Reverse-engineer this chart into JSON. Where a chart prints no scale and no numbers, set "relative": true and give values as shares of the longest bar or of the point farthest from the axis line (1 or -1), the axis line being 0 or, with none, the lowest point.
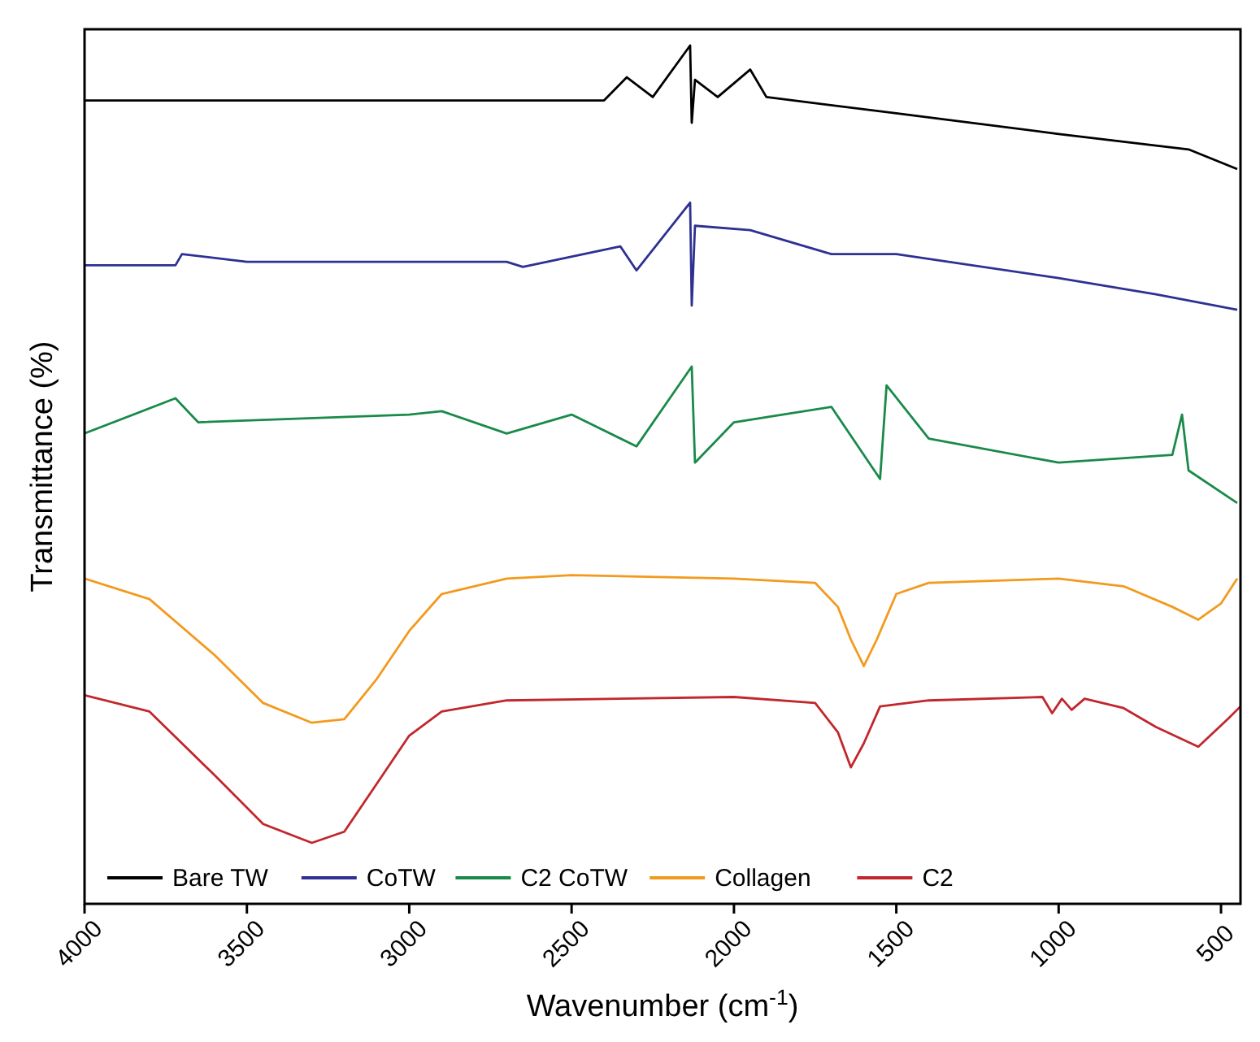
{
  "chart_data": {
    "type": "line",
    "relative": true,
    "xlabel": "Wavenumber (cm$^{-1}$)",
    "ylabel": "Transmittance (%)",
    "xlim": [
      4000,
      440
    ],
    "xticks": [
      4000,
      3500,
      3000,
      2500,
      2000,
      1500,
      1000,
      500
    ],
    "legend": "bottom",
    "grid": false,
    "marker": "none",
    "line_style": "solid",
    "series": [
      {
        "name": "Bare TW",
        "color": "#000000",
        "x": [
          4000,
          3500,
          3000,
          2400,
          2330,
          2250,
          2135,
          2130,
          2120,
          2050,
          1950,
          1900,
          1500,
          1000,
          600,
          450
        ],
        "values": [
          0.936,
          0.936,
          0.936,
          0.936,
          0.963,
          0.94,
          1.0,
          0.91,
          0.96,
          0.94,
          0.972,
          0.94,
          0.921,
          0.897,
          0.879,
          0.856
        ]
      },
      {
        "name": "CoTW",
        "color": "#2e3192",
        "x": [
          4000,
          3720,
          3700,
          3500,
          2700,
          2650,
          2350,
          2300,
          2135,
          2130,
          2120,
          1950,
          1700,
          1500,
          1000,
          700,
          450
        ],
        "values": [
          0.744,
          0.744,
          0.757,
          0.748,
          0.748,
          0.742,
          0.766,
          0.738,
          0.817,
          0.697,
          0.79,
          0.785,
          0.757,
          0.757,
          0.729,
          0.71,
          0.692
        ]
      },
      {
        "name": "C2 CoTW",
        "color": "#1a8a4a",
        "x": [
          4000,
          3720,
          3650,
          3000,
          2900,
          2700,
          2500,
          2300,
          2130,
          2120,
          2000,
          1700,
          1550,
          1530,
          1400,
          1000,
          650,
          620,
          600,
          450
        ],
        "values": [
          0.548,
          0.589,
          0.561,
          0.57,
          0.574,
          0.548,
          0.57,
          0.533,
          0.626,
          0.514,
          0.561,
          0.579,
          0.495,
          0.604,
          0.542,
          0.514,
          0.523,
          0.57,
          0.505,
          0.467
        ]
      },
      {
        "name": "Collagen",
        "color": "#f39a1e",
        "x": [
          4000,
          3800,
          3600,
          3450,
          3300,
          3200,
          3100,
          3000,
          2900,
          2700,
          2500,
          2000,
          1750,
          1680,
          1640,
          1600,
          1560,
          1500,
          1400,
          1000,
          800,
          650,
          570,
          500,
          450
        ],
        "values": [
          0.379,
          0.355,
          0.29,
          0.234,
          0.211,
          0.215,
          0.262,
          0.318,
          0.361,
          0.379,
          0.383,
          0.379,
          0.374,
          0.346,
          0.308,
          0.277,
          0.308,
          0.361,
          0.374,
          0.379,
          0.37,
          0.346,
          0.331,
          0.35,
          0.379
        ]
      },
      {
        "name": "C2",
        "color": "#c1272d",
        "x": [
          4000,
          3800,
          3600,
          3450,
          3300,
          3200,
          3100,
          3000,
          2900,
          2700,
          2000,
          1750,
          1680,
          1640,
          1600,
          1550,
          1400,
          1050,
          1020,
          990,
          960,
          920,
          800,
          700,
          570,
          480,
          440
        ],
        "values": [
          0.243,
          0.224,
          0.15,
          0.093,
          0.071,
          0.084,
          0.14,
          0.196,
          0.224,
          0.237,
          0.241,
          0.234,
          0.2,
          0.159,
          0.187,
          0.23,
          0.237,
          0.241,
          0.222,
          0.239,
          0.226,
          0.239,
          0.228,
          0.206,
          0.183,
          0.215,
          0.23
        ]
      }
    ]
  }
}
